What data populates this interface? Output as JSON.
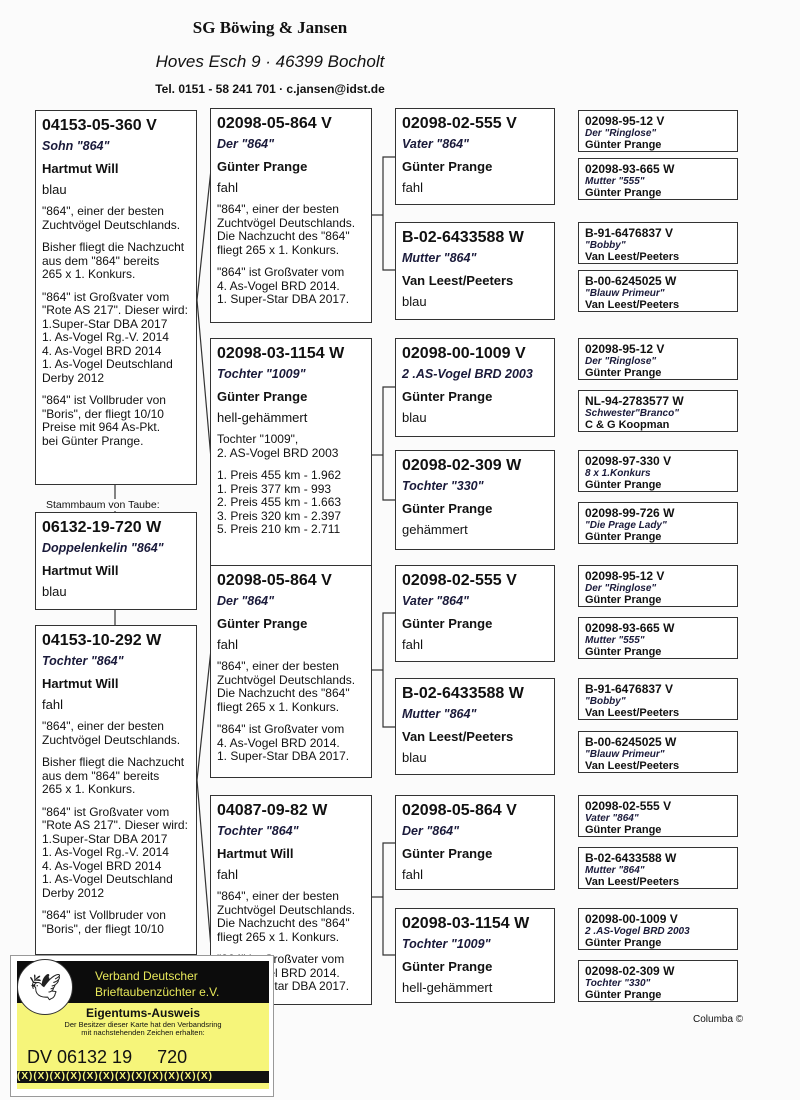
{
  "header": {
    "title": "SG Böwing & Jansen",
    "address": "Hoves Esch 9  ·  46399 Bocholt",
    "contact": "Tel. 0151 - 58 241 701  ·  c.jansen@idst.de"
  },
  "pedigree_label": "Stammbaum von Taube:",
  "footer": "Columba ©",
  "col1": [
    {
      "ring": "04153-05-360 V",
      "name": "Sohn \"864\"",
      "breeder": "Hartmut Will",
      "color": "blau",
      "notes": [
        "\"864\", einer der besten\nZuchtvögel Deutschlands.",
        "Bisher fliegt die Nachzucht\naus dem  \"864\" bereits\n265 x 1. Konkurs.",
        "\"864\" ist Großvater vom\n\"Rote AS 217\". Dieser wird:\n1.Super-Star DBA 2017\n1. As-Vogel Rg.-V. 2014\n4. As-Vogel BRD 2014\n1. As-Vogel Deutschland\nDerby 2012",
        "\"864\" ist Vollbruder von\n\"Boris\", der fliegt 10/10\nPreise mit 964 As-Pkt.\nbei Günter Prange."
      ]
    },
    {
      "ring": "06132-19-720 W",
      "name": "Doppelenkelin \"864\"",
      "breeder": "Hartmut Will",
      "color": "blau",
      "notes": []
    },
    {
      "ring": "04153-10-292 W",
      "name": "Tochter \"864\"",
      "breeder": "Hartmut Will",
      "color": "fahl",
      "notes": [
        "\"864\", einer der besten\nZuchtvögel Deutschlands.",
        "Bisher fliegt die Nachzucht\naus dem  \"864\" bereits\n265 x 1. Konkurs.",
        "\"864\" ist Großvater vom\n\"Rote AS 217\". Dieser wird:\n1.Super-Star DBA 2017\n1. As-Vogel Rg.-V. 2014\n4. As-Vogel BRD 2014\n1. As-Vogel Deutschland\nDerby 2012",
        "\"864\" ist Vollbruder von\n\"Boris\", der fliegt 10/10"
      ]
    }
  ],
  "col2": [
    {
      "ring": "02098-05-864 V",
      "name": "Der \"864\"",
      "breeder": "Günter Prange",
      "color": "fahl",
      "notes": [
        "\"864\", einer der besten\nZuchtvögel Deutschlands.\nDie Nachzucht des \"864\"\nfliegt 265 x 1. Konkurs.",
        "\"864\" ist Großvater vom\n4. As-Vogel BRD 2014.\n1. Super-Star DBA 2017."
      ]
    },
    {
      "ring": "02098-03-1154 W",
      "name": "Tochter \"1009\"",
      "breeder": "Günter Prange",
      "color": "hell-gehämmert",
      "notes": [
        "Tochter \"1009\",\n2. AS-Vogel BRD 2003",
        "1. Preis 455 km - 1.962\n1. Preis 377 km -    993\n2. Preis 455 km - 1.663\n3. Preis 320 km - 2.397\n5. Preis 210 km - 2.711"
      ]
    },
    {
      "ring": "02098-05-864 V",
      "name": "Der \"864\"",
      "breeder": "Günter Prange",
      "color": "fahl",
      "notes": [
        "\"864\", einer der besten\nZuchtvögel Deutschlands.\nDie Nachzucht des \"864\"\nfliegt 265 x 1. Konkurs.",
        "\"864\" ist Großvater vom\n4. As-Vogel BRD 2014.\n1. Super-Star DBA 2017."
      ]
    },
    {
      "ring": "04087-09-82 W",
      "name": "Tochter \"864\"",
      "breeder": "Hartmut Will",
      "color": "fahl",
      "notes": [
        "\"864\", einer der besten\nZuchtvögel Deutschlands.\nDie Nachzucht des \"864\"\nfliegt 265 x 1. Konkurs.",
        "\"864\" ist Großvater vom\n4. As-Vogel BRD 2014.\n1. Super-Star DBA 2017."
      ]
    }
  ],
  "col3": [
    {
      "ring": "02098-02-555 V",
      "name": "Vater \"864\"",
      "breeder": "Günter Prange",
      "color": "fahl"
    },
    {
      "ring": "B-02-6433588 W",
      "name": "Mutter \"864\"",
      "breeder": "Van Leest/Peeters",
      "color": "blau"
    },
    {
      "ring": "02098-00-1009 V",
      "name": "2 .AS-Vogel BRD 2003",
      "breeder": "Günter Prange",
      "color": "blau"
    },
    {
      "ring": "02098-02-309 W",
      "name": "Tochter \"330\"",
      "breeder": "Günter Prange",
      "color": "gehämmert"
    },
    {
      "ring": "02098-02-555 V",
      "name": "Vater \"864\"",
      "breeder": "Günter Prange",
      "color": "fahl"
    },
    {
      "ring": "B-02-6433588 W",
      "name": "Mutter \"864\"",
      "breeder": "Van Leest/Peeters",
      "color": "blau"
    },
    {
      "ring": "02098-05-864 V",
      "name": "Der \"864\"",
      "breeder": "Günter Prange",
      "color": "fahl"
    },
    {
      "ring": "02098-03-1154 W",
      "name": "Tochter \"1009\"",
      "breeder": "Günter Prange",
      "color": "hell-gehämmert"
    }
  ],
  "col4": [
    {
      "ring": "02098-95-12 V",
      "name": "Der \"Ringlose\"",
      "breeder": "Günter Prange"
    },
    {
      "ring": "02098-93-665 W",
      "name": "Mutter \"555\"",
      "breeder": "Günter Prange"
    },
    {
      "ring": "B-91-6476837 V",
      "name": "\"Bobby\"",
      "breeder": "Van Leest/Peeters"
    },
    {
      "ring": "B-00-6245025 W",
      "name": "\"Blauw Primeur\"",
      "breeder": "Van Leest/Peeters"
    },
    {
      "ring": "02098-95-12 V",
      "name": "Der \"Ringlose\"",
      "breeder": "Günter Prange"
    },
    {
      "ring": "NL-94-2783577 W",
      "name": "Schwester\"Branco\"",
      "breeder": "C & G Koopman"
    },
    {
      "ring": "02098-97-330 V",
      "name": "8 x 1.Konkurs",
      "breeder": "Günter Prange"
    },
    {
      "ring": "02098-99-726 W",
      "name": "\"Die Prage Lady\"",
      "breeder": "Günter Prange"
    },
    {
      "ring": "02098-95-12 V",
      "name": "Der \"Ringlose\"",
      "breeder": "Günter Prange"
    },
    {
      "ring": "02098-93-665 W",
      "name": "Mutter \"555\"",
      "breeder": "Günter Prange"
    },
    {
      "ring": "B-91-6476837 V",
      "name": "\"Bobby\"",
      "breeder": "Van Leest/Peeters"
    },
    {
      "ring": "B-00-6245025 W",
      "name": "\"Blauw Primeur\"",
      "breeder": "Van Leest/Peeters"
    },
    {
      "ring": "02098-02-555 V",
      "name": "Vater \"864\"",
      "breeder": "Günter Prange"
    },
    {
      "ring": "B-02-6433588 W",
      "name": "Mutter \"864\"",
      "breeder": "Van Leest/Peeters"
    },
    {
      "ring": "02098-00-1009 V",
      "name": "2 .AS-Vogel BRD 2003",
      "breeder": "Günter Prange"
    },
    {
      "ring": "02098-02-309 W",
      "name": "Tochter \"330\"",
      "breeder": "Günter Prange"
    }
  ],
  "card": {
    "org_line1": "Verband Deutscher",
    "org_line2": "Brieftaubenzüchter e.V.",
    "title": "Eigentums-Ausweis",
    "subtitle": "Der Besitzer dieser Karte hat den Verbandsring\nmit nachstehenden Zeichen erhalten:",
    "ring": "DV 06132 19     720",
    "logo_icon": "dove-icon",
    "strip": "(X)(X)(X)(X)(X)(X)(X)(X)(X)(X)(X)(X)",
    "colors": {
      "yellow": "#f6f57a",
      "black": "#0c0c0c"
    }
  }
}
